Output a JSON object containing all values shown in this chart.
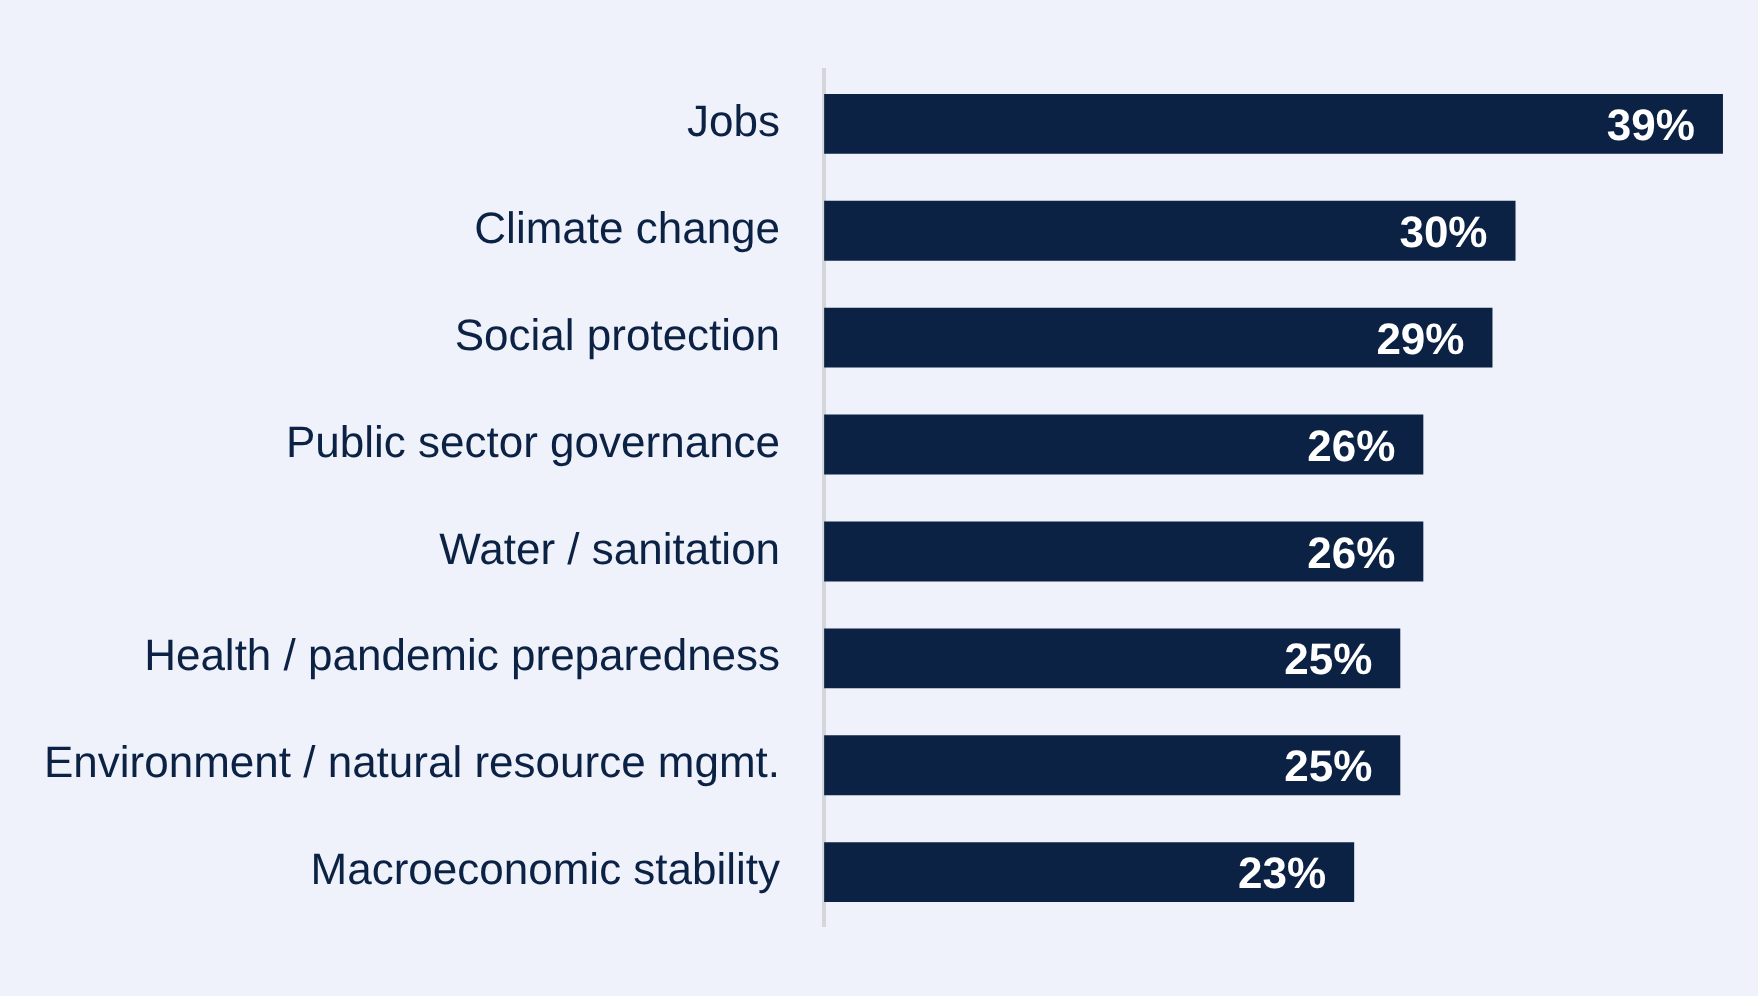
{
  "chart_data": {
    "type": "bar",
    "orientation": "horizontal",
    "categories": [
      "Jobs",
      "Climate change",
      "Social protection",
      "Public sector governance",
      "Water / sanitation",
      "Health / pandemic preparedness",
      "Environment / natural resource mgmt.",
      "Macroeconomic stability"
    ],
    "values": [
      39,
      30,
      29,
      26,
      26,
      25,
      25,
      23
    ],
    "value_labels": [
      "39%",
      "30%",
      "29%",
      "26%",
      "26%",
      "25%",
      "25%",
      "23%"
    ],
    "color": "#0b2244",
    "grid": false,
    "legend": false
  }
}
